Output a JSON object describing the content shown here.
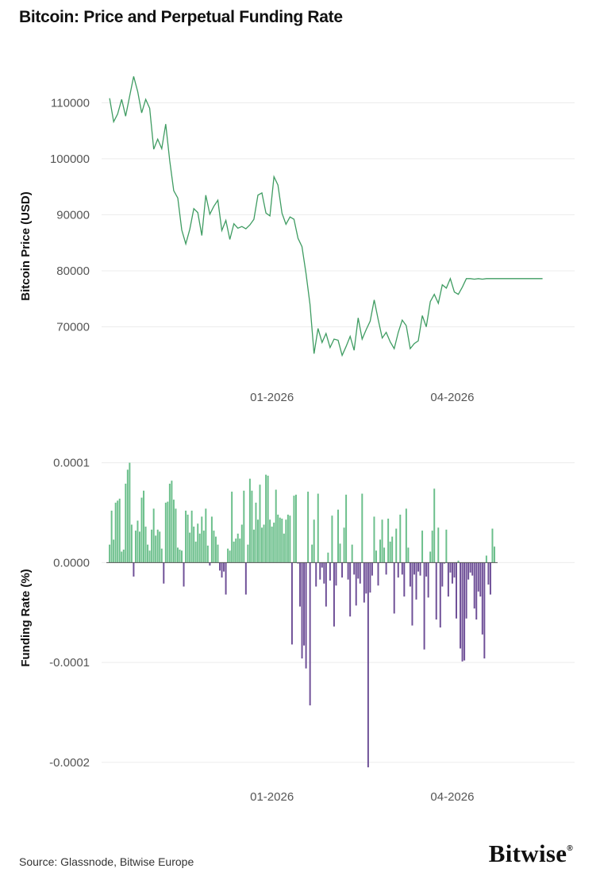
{
  "title": "Bitcoin: Price and Perpetual Funding Rate",
  "source": "Source: Glassnode, Bitwise Europe",
  "logo": {
    "text": "Bitwise",
    "mark": "®"
  },
  "colors": {
    "price_line": "#3f9c62",
    "positive_bar": "#6bbf8b",
    "negative_bar": "#6e4f97"
  },
  "chart_data": [
    {
      "type": "line",
      "ylabel": "Bitcoin Price (USD)",
      "xlabel": "",
      "ylim": [
        60000,
        117000
      ],
      "yticks": [
        70000,
        80000,
        90000,
        100000,
        110000
      ],
      "ytick_labels": [
        "70000",
        "80000",
        "90000",
        "100000",
        "110000"
      ],
      "xlim": [
        "2025-10-08",
        "2026-06-01"
      ],
      "xticks": [
        "2026-01-01",
        "2026-04-01"
      ],
      "xtick_labels": [
        "01-2026",
        "04-2026"
      ],
      "grid": true,
      "series": [
        {
          "x": [
            "2025-10-12",
            "2025-10-14",
            "2025-10-16",
            "2025-10-18",
            "2025-10-20",
            "2025-10-22",
            "2025-10-24",
            "2025-10-26",
            "2025-10-28",
            "2025-10-30",
            "2025-11-01",
            "2025-11-03",
            "2025-11-05",
            "2025-11-07",
            "2025-11-09",
            "2025-11-11",
            "2025-11-13",
            "2025-11-15",
            "2025-11-17",
            "2025-11-19",
            "2025-11-21",
            "2025-11-23",
            "2025-11-25",
            "2025-11-27",
            "2025-11-29",
            "2025-12-01",
            "2025-12-03",
            "2025-12-05",
            "2025-12-07",
            "2025-12-09",
            "2025-12-11",
            "2025-12-13",
            "2025-12-15",
            "2025-12-17",
            "2025-12-19",
            "2025-12-21",
            "2025-12-23",
            "2025-12-25",
            "2025-12-27",
            "2025-12-29",
            "2025-12-31",
            "2026-01-02",
            "2026-01-04",
            "2026-01-06",
            "2026-01-08",
            "2026-01-10",
            "2026-01-12",
            "2026-01-14",
            "2026-01-16",
            "2026-01-18",
            "2026-01-20",
            "2026-01-22",
            "2026-01-24",
            "2026-01-26",
            "2026-01-28",
            "2026-01-30",
            "2026-02-01",
            "2026-02-03",
            "2026-02-05",
            "2026-02-07",
            "2026-02-09",
            "2026-02-11",
            "2026-02-13",
            "2026-02-15",
            "2026-02-17",
            "2026-02-19",
            "2026-02-21",
            "2026-02-23",
            "2026-02-25",
            "2026-02-27",
            "2026-03-01",
            "2026-03-03",
            "2026-03-05",
            "2026-03-07",
            "2026-03-09",
            "2026-03-11",
            "2026-03-13",
            "2026-03-15",
            "2026-03-17",
            "2026-03-19",
            "2026-03-21",
            "2026-03-23",
            "2026-03-25",
            "2026-03-27",
            "2026-03-29",
            "2026-03-31",
            "2026-04-02",
            "2026-04-04",
            "2026-04-06",
            "2026-04-08",
            "2026-04-10",
            "2026-04-12",
            "2026-04-14",
            "2026-04-16",
            "2026-04-18",
            "2026-04-20",
            "2026-04-22",
            "2026-04-24",
            "2026-04-26",
            "2026-04-28",
            "2026-04-30",
            "2026-05-02",
            "2026-05-04",
            "2026-05-06",
            "2026-05-08",
            "2026-05-10",
            "2026-05-12",
            "2026-05-14",
            "2026-05-16",
            "2026-05-18",
            "2026-05-20",
            "2026-05-22"
          ],
          "values": [
            110800,
            106600,
            108000,
            110600,
            107600,
            111200,
            114700,
            112000,
            108200,
            110600,
            109000,
            101700,
            103500,
            101800,
            106200,
            99600,
            94300,
            93000,
            87300,
            84800,
            87400,
            91100,
            90400,
            86300,
            93500,
            90100,
            91500,
            92600,
            87200,
            89000,
            85600,
            88400,
            87600,
            87900,
            87500,
            88200,
            89200,
            93500,
            93900,
            90300,
            89800,
            96800,
            95300,
            90300,
            88300,
            89600,
            89200,
            85800,
            84300,
            79500,
            74000,
            65200,
            69700,
            67200,
            68800,
            66300,
            67800,
            67600,
            64900,
            66500,
            68300,
            65800,
            71600,
            67800,
            69500,
            71000,
            74800,
            71300,
            68000,
            69000,
            67300,
            66100,
            69000,
            71200,
            70200,
            66100,
            67000,
            67500,
            72000,
            70000,
            74500,
            75800,
            74200,
            77500,
            76900,
            78600,
            76200,
            75800,
            77100,
            78600,
            78600,
            78500,
            78600,
            78500,
            78600,
            78600,
            78600,
            78600,
            78600,
            78600,
            78600,
            78600,
            78600,
            78600,
            78600,
            78600,
            78600,
            78600,
            78600,
            78600,
            78600,
            78600
          ]
        }
      ]
    },
    {
      "type": "bar",
      "ylabel": "Funding Rate (%)",
      "xlabel": "",
      "ylim": [
        -0.00022,
        0.00011
      ],
      "yticks": [
        -0.0002,
        -0.0001,
        0.0,
        0.0001
      ],
      "ytick_labels": [
        "-0.0002",
        "-0.0001",
        "0.0000",
        "0.0001"
      ],
      "xlim": [
        "2025-10-08",
        "2026-06-01"
      ],
      "xticks": [
        "2026-01-01",
        "2026-04-01"
      ],
      "xtick_labels": [
        "01-2026",
        "04-2026"
      ],
      "grid": true,
      "start_date": "2025-10-12",
      "values": [
        1.8e-05,
        5.2e-05,
        2.3e-05,
        6e-05,
        6.2e-05,
        6.4e-05,
        1.1e-05,
        1.3e-05,
        7.9e-05,
        9.3e-05,
        0.0001,
        3.8e-05,
        -1.4e-05,
        3.2e-05,
        4.2e-05,
        3.1e-05,
        6.5e-05,
        7.2e-05,
        3.6e-05,
        1.8e-05,
        1.2e-05,
        3.3e-05,
        5.4e-05,
        2.7e-05,
        3.3e-05,
        3.1e-05,
        1.4e-05,
        -2.1e-05,
        6e-05,
        6.1e-05,
        7.9e-05,
        8.2e-05,
        6.3e-05,
        5.4e-05,
        1.5e-05,
        1.3e-05,
        1.2e-05,
        -2.4e-05,
        5.2e-05,
        4.8e-05,
        3e-05,
        5.2e-05,
        3.6e-05,
        2.1e-05,
        3.9e-05,
        2.9e-05,
        4.6e-05,
        3.2e-05,
        5.4e-05,
        1.7e-05,
        -3e-06,
        4.6e-05,
        3.2e-05,
        2.6e-05,
        1.8e-05,
        -8e-06,
        -1.5e-05,
        -9e-06,
        -3.2e-05,
        1.4e-05,
        1.2e-05,
        7.1e-05,
        2.1e-05,
        2.4e-05,
        2.9e-05,
        2.4e-05,
        3.8e-05,
        7.2e-05,
        -3.2e-05,
        1.8e-05,
        8.4e-05,
        7.2e-05,
        3.3e-05,
        6e-05,
        4.3e-05,
        7.8e-05,
        3.5e-05,
        3.8e-05,
        8.8e-05,
        8.7e-05,
        4.3e-05,
        3.6e-05,
        4e-05,
        7.3e-05,
        4.8e-05,
        4.5e-05,
        4.4e-05,
        2.9e-05,
        4.3e-05,
        4.8e-05,
        4.7e-05,
        -8.2e-05,
        6.7e-05,
        6.8e-05,
        -1e-06,
        -4.4e-05,
        -9.6e-05,
        -8.3e-05,
        -0.000106,
        7.1e-05,
        -0.000143,
        1.8e-05,
        4.3e-05,
        -2.4e-05,
        6.9e-05,
        -1.7e-05,
        -5e-06,
        -2.1e-05,
        -4.4e-05,
        1e-05,
        -1.8e-05,
        4.7e-05,
        -6.4e-05,
        -2.3e-05,
        5.3e-05,
        1.9e-05,
        -1.5e-05,
        3.5e-05,
        6.8e-05,
        -1.7e-05,
        -5.4e-05,
        1.8e-05,
        -1.2e-05,
        -4.3e-05,
        -1.6e-05,
        -2.1e-05,
        6.9e-05,
        -4e-05,
        -3.1e-05,
        -0.000205,
        -3e-05,
        -1.3e-05,
        4.6e-05,
        1.2e-05,
        -2.3e-05,
        2.3e-05,
        4.3e-05,
        1.5e-05,
        -1.2e-05,
        4.4e-05,
        2.1e-05,
        2.6e-05,
        -5.1e-05,
        3.4e-05,
        -1.5e-05,
        4.8e-05,
        -1.2e-05,
        -3.4e-05,
        5.4e-05,
        1.5e-05,
        -2.4e-05,
        -6.3e-05,
        -1.2e-05,
        -3.7e-05,
        -9e-06,
        -1.3e-05,
        3.2e-05,
        -8.7e-05,
        -1.4e-05,
        -3.5e-05,
        1.1e-05,
        3.2e-05,
        7.4e-05,
        -5.7e-05,
        3.5e-05,
        -6.5e-05,
        -2.4e-05,
        -1e-06,
        3.3e-05,
        -3.4e-05,
        -1e-05,
        -2.1e-05,
        -1.5e-05,
        -5.6e-05,
        2e-06,
        -8.6e-05,
        -9.9e-05,
        -9.8e-05,
        -5.6e-05,
        -1.7e-05,
        -1e-05,
        -1.3e-05,
        -4.6e-05,
        -5.7e-05,
        -2.9e-05,
        -3.4e-05,
        -7.2e-05,
        -9.6e-05,
        7e-06,
        -2.2e-05,
        -3.2e-05,
        3.4e-05,
        1.6e-05
      ]
    }
  ]
}
